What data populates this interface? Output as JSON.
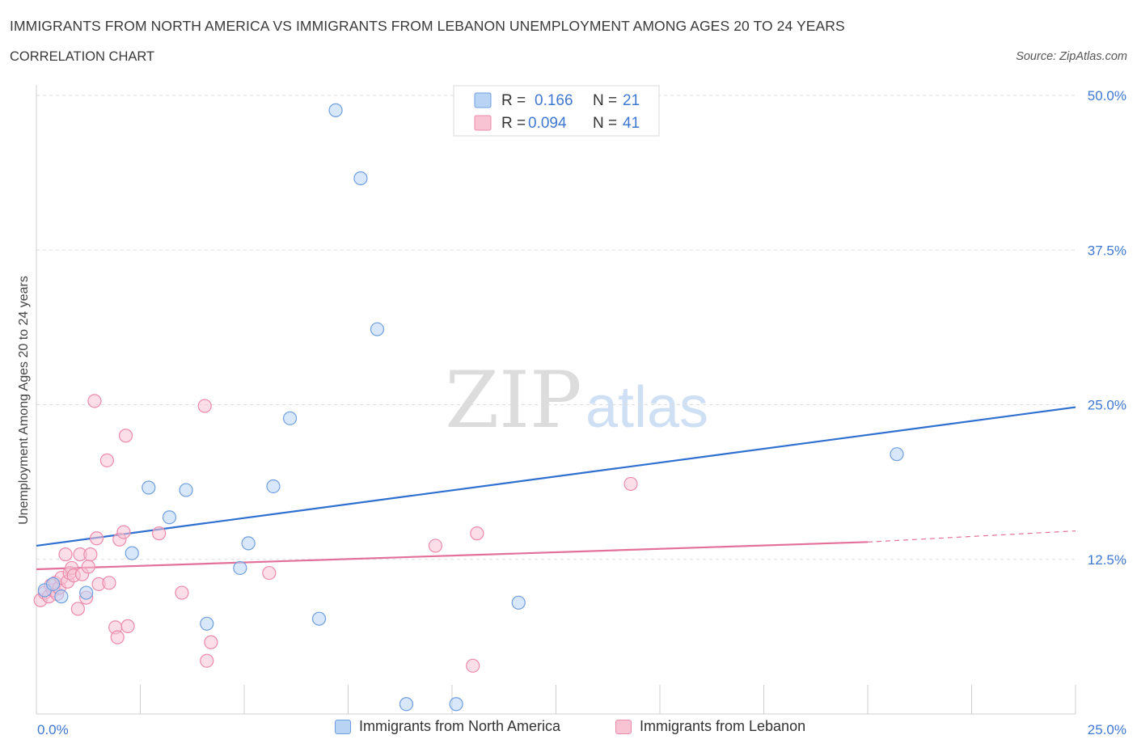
{
  "header": {
    "title": "IMMIGRANTS FROM NORTH AMERICA VS IMMIGRANTS FROM LEBANON UNEMPLOYMENT AMONG AGES 20 TO 24 YEARS",
    "subtitle": "CORRELATION CHART",
    "source": "Source: ZipAtlas.com"
  },
  "watermark": {
    "zip": "ZIP",
    "atlas": "atlas"
  },
  "colors": {
    "blue_fill": "#b9d3f5",
    "blue_stroke": "#6f9fe0",
    "blue_line": "#2f6fd0",
    "pink_fill": "#f8c3d3",
    "pink_stroke": "#ec8aab",
    "pink_line": "#e2709a",
    "axis_text": "#3f78d0",
    "grid": "#dddddd"
  },
  "legend": {
    "rows": [
      {
        "r_label": "R = ",
        "r_value": "0.166",
        "n_label": "N = ",
        "n_value": "21"
      },
      {
        "r_label": "R = ",
        "r_value": "0.094",
        "n_label": "N = ",
        "n_value": "41"
      }
    ]
  },
  "chart_data": {
    "type": "scatter",
    "title": "IMMIGRANTS FROM NORTH AMERICA VS IMMIGRANTS FROM LEBANON UNEMPLOYMENT AMONG AGES 20 TO 24 YEARS",
    "subtitle": "CORRELATION CHART",
    "xlabel": "",
    "ylabel": "Unemployment Among Ages 20 to 24 years",
    "xlim": [
      0,
      25
    ],
    "ylim": [
      0,
      50
    ],
    "x_tick_labels": [
      "0.0%",
      "25.0%"
    ],
    "y_ticks": [
      12.5,
      25,
      37.5,
      50
    ],
    "y_tick_labels": [
      "12.5%",
      "25.0%",
      "37.5%",
      "50.0%"
    ],
    "grid": true,
    "legend_position": "top-center",
    "series": [
      {
        "name": "Immigrants from North America",
        "color": "#b9d3f5",
        "R": 0.166,
        "N": 21,
        "trend": {
          "x": [
            0,
            25
          ],
          "y": [
            13.6,
            24.8
          ]
        },
        "points": [
          [
            0.2,
            10.0
          ],
          [
            0.6,
            9.5
          ],
          [
            1.2,
            9.8
          ],
          [
            2.3,
            13.0
          ],
          [
            2.7,
            18.3
          ],
          [
            3.2,
            15.9
          ],
          [
            3.6,
            18.1
          ],
          [
            4.1,
            7.3
          ],
          [
            4.9,
            11.8
          ],
          [
            5.1,
            13.8
          ],
          [
            5.7,
            18.4
          ],
          [
            6.1,
            23.9
          ],
          [
            6.8,
            7.7
          ],
          [
            7.2,
            48.8
          ],
          [
            7.8,
            43.3
          ],
          [
            8.2,
            31.1
          ],
          [
            8.9,
            0.8
          ],
          [
            10.1,
            0.8
          ],
          [
            11.6,
            9.0
          ],
          [
            20.7,
            21.0
          ],
          [
            0.4,
            10.5
          ]
        ]
      },
      {
        "name": "Immigrants from Lebanon",
        "color": "#f8c3d3",
        "R": 0.094,
        "N": 41,
        "trend": {
          "x": [
            0,
            20
          ],
          "y": [
            11.7,
            13.9
          ]
        },
        "trend_dashed": {
          "x": [
            20,
            25
          ],
          "y": [
            13.9,
            14.8
          ]
        },
        "points": [
          [
            0.1,
            9.2
          ],
          [
            0.2,
            9.8
          ],
          [
            0.3,
            9.5
          ],
          [
            0.35,
            10.4
          ],
          [
            0.4,
            10.0
          ],
          [
            0.45,
            10.6
          ],
          [
            0.5,
            9.7
          ],
          [
            0.55,
            10.2
          ],
          [
            0.6,
            11.0
          ],
          [
            0.7,
            12.9
          ],
          [
            0.75,
            10.7
          ],
          [
            0.8,
            11.4
          ],
          [
            0.85,
            11.8
          ],
          [
            0.9,
            11.2
          ],
          [
            1.0,
            8.5
          ],
          [
            1.05,
            12.9
          ],
          [
            1.1,
            11.3
          ],
          [
            1.2,
            9.4
          ],
          [
            1.25,
            11.9
          ],
          [
            1.3,
            12.9
          ],
          [
            1.4,
            25.3
          ],
          [
            1.45,
            14.2
          ],
          [
            1.5,
            10.5
          ],
          [
            1.7,
            20.5
          ],
          [
            1.75,
            10.6
          ],
          [
            1.9,
            7.0
          ],
          [
            1.95,
            6.2
          ],
          [
            2.0,
            14.1
          ],
          [
            2.1,
            14.7
          ],
          [
            2.15,
            22.5
          ],
          [
            2.2,
            7.1
          ],
          [
            2.95,
            14.6
          ],
          [
            3.5,
            9.8
          ],
          [
            4.05,
            24.9
          ],
          [
            4.1,
            4.3
          ],
          [
            4.2,
            5.8
          ],
          [
            5.6,
            11.4
          ],
          [
            9.6,
            13.6
          ],
          [
            10.5,
            3.9
          ],
          [
            10.6,
            14.6
          ],
          [
            14.3,
            18.6
          ]
        ]
      }
    ]
  },
  "bottom_legend": {
    "items": [
      {
        "label": "Immigrants from North America"
      },
      {
        "label": "Immigrants from Lebanon"
      }
    ]
  }
}
